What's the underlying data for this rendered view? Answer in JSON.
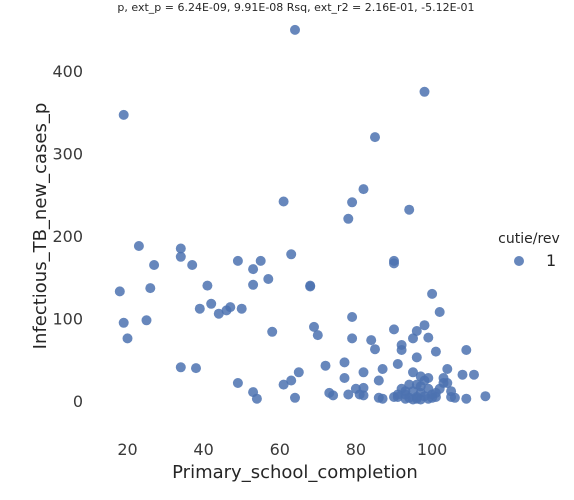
{
  "chart_data": {
    "type": "scatter",
    "title": "p, ext_p = 6.24E-09, 9.91E-08 Rsq, ext_r2 = 2.16E-01, -5.12E-01",
    "xlabel": "Primary_school_completion",
    "ylabel": "Infectious_TB_new_cases_p",
    "xlim": [
      12,
      116
    ],
    "ylim": [
      -35,
      462
    ],
    "xticks": [
      20,
      40,
      60,
      80,
      100
    ],
    "yticks": [
      0,
      100,
      200,
      300,
      400
    ],
    "grid": false,
    "legend": {
      "title": "cutie/rev",
      "entries": [
        "1"
      ],
      "placement": "right"
    },
    "series": [
      {
        "name": "1",
        "color": "#4c72b0",
        "points": [
          [
            19,
            347
          ],
          [
            18,
            133
          ],
          [
            19,
            95
          ],
          [
            20,
            76
          ],
          [
            23,
            188
          ],
          [
            26,
            137
          ],
          [
            27,
            165
          ],
          [
            25,
            98
          ],
          [
            34,
            185
          ],
          [
            34,
            175
          ],
          [
            37,
            165
          ],
          [
            34,
            41
          ],
          [
            38,
            40
          ],
          [
            39,
            112
          ],
          [
            41,
            140
          ],
          [
            42,
            118
          ],
          [
            44,
            106
          ],
          [
            46,
            110
          ],
          [
            47,
            114
          ],
          [
            49,
            170
          ],
          [
            50,
            112
          ],
          [
            49,
            22
          ],
          [
            53,
            160
          ],
          [
            53,
            141
          ],
          [
            55,
            170
          ],
          [
            57,
            148
          ],
          [
            58,
            84
          ],
          [
            53,
            11
          ],
          [
            54,
            3
          ],
          [
            61,
            242
          ],
          [
            63,
            178
          ],
          [
            64,
            450
          ],
          [
            61,
            20
          ],
          [
            63,
            25
          ],
          [
            65,
            35
          ],
          [
            64,
            4
          ],
          [
            68,
            140
          ],
          [
            68,
            139
          ],
          [
            69,
            90
          ],
          [
            70,
            80
          ],
          [
            72,
            43
          ],
          [
            73,
            10
          ],
          [
            74,
            7
          ],
          [
            78,
            221
          ],
          [
            79,
            241
          ],
          [
            82,
            257
          ],
          [
            79,
            102
          ],
          [
            79,
            76
          ],
          [
            77,
            47
          ],
          [
            77,
            28
          ],
          [
            78,
            8
          ],
          [
            80,
            15
          ],
          [
            81,
            8
          ],
          [
            82,
            35
          ],
          [
            82,
            16
          ],
          [
            82,
            7
          ],
          [
            84,
            74
          ],
          [
            85,
            320
          ],
          [
            85,
            63
          ],
          [
            86,
            25
          ],
          [
            86,
            4
          ],
          [
            87,
            39
          ],
          [
            87,
            3
          ],
          [
            90,
            170
          ],
          [
            90,
            167
          ],
          [
            90,
            87
          ],
          [
            90,
            5
          ],
          [
            91,
            45
          ],
          [
            92,
            68
          ],
          [
            92,
            62
          ],
          [
            93,
            12
          ],
          [
            94,
            232
          ],
          [
            94,
            4
          ],
          [
            95,
            35
          ],
          [
            95,
            76
          ],
          [
            96,
            85
          ],
          [
            96,
            53
          ],
          [
            96,
            20
          ],
          [
            96,
            5
          ],
          [
            97,
            30
          ],
          [
            97,
            10
          ],
          [
            98,
            375
          ],
          [
            98,
            92
          ],
          [
            98,
            25
          ],
          [
            99,
            77
          ],
          [
            99,
            15
          ],
          [
            100,
            130
          ],
          [
            100,
            8
          ],
          [
            101,
            60
          ],
          [
            102,
            108
          ],
          [
            101,
            5
          ],
          [
            103,
            22
          ],
          [
            103,
            28
          ],
          [
            104,
            39
          ],
          [
            104,
            22
          ],
          [
            105,
            12
          ],
          [
            105,
            5
          ],
          [
            106,
            4
          ],
          [
            108,
            32
          ],
          [
            109,
            62
          ],
          [
            109,
            3
          ],
          [
            111,
            32
          ],
          [
            114,
            6
          ],
          [
            91,
            5
          ],
          [
            92,
            15
          ],
          [
            93,
            8
          ],
          [
            94,
            20
          ],
          [
            95,
            12
          ],
          [
            96,
            3
          ],
          [
            97,
            18
          ],
          [
            98,
            6
          ],
          [
            99,
            28
          ],
          [
            100,
            4
          ],
          [
            101,
            10
          ],
          [
            102,
            15
          ],
          [
            95,
            2
          ],
          [
            97,
            2
          ],
          [
            99,
            3
          ],
          [
            91,
            8
          ],
          [
            93,
            3
          ]
        ]
      }
    ]
  }
}
